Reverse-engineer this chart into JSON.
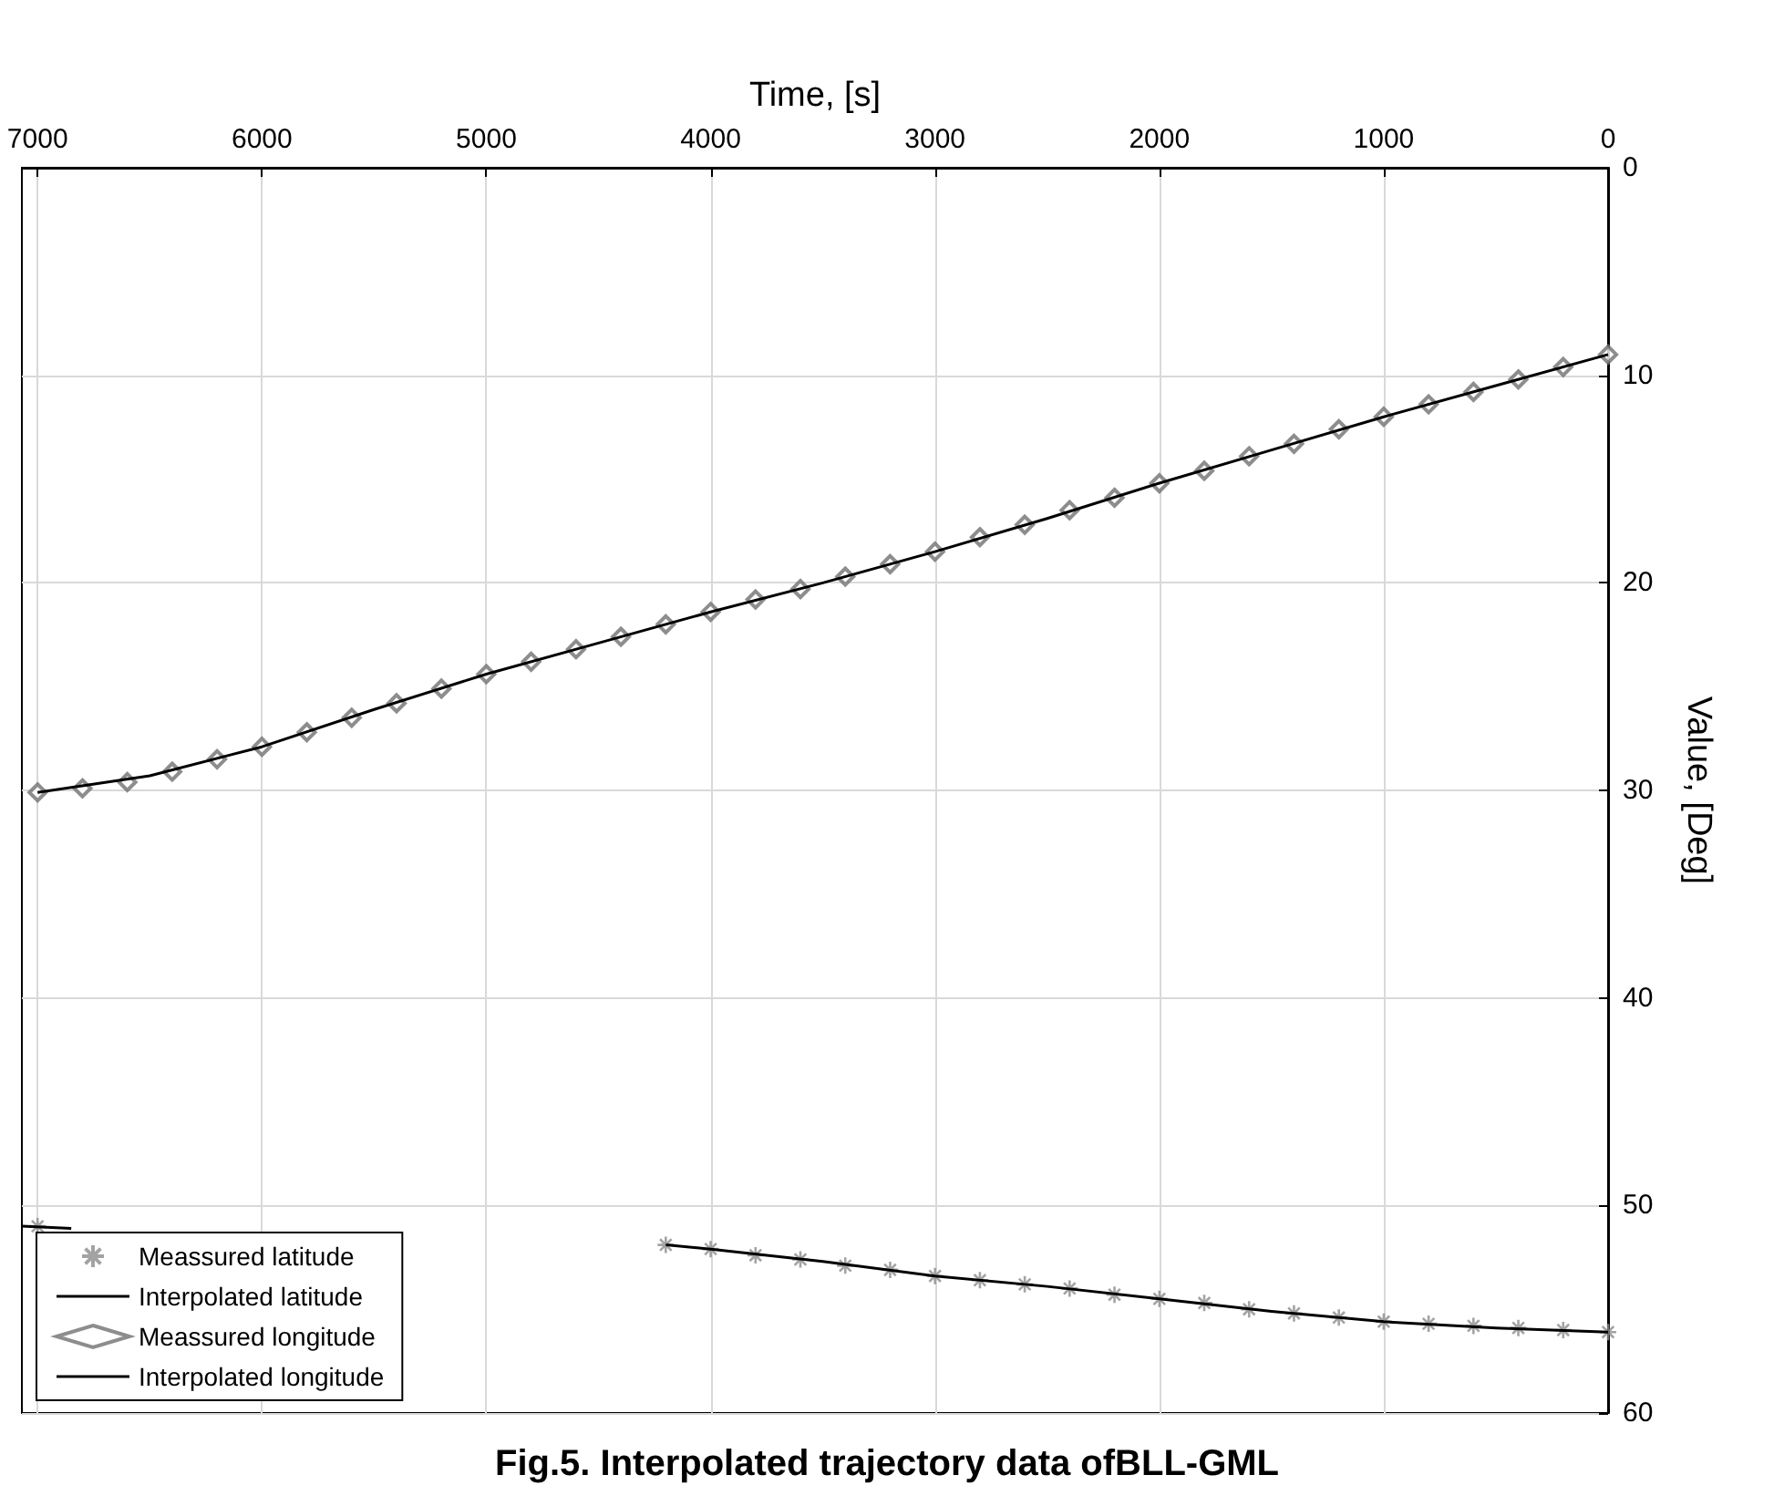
{
  "chart_data": {
    "type": "line",
    "title": "Fig.5. Interpolated trajectory data ofBLL-GML",
    "xlabel": "Time, [s]",
    "ylabel": "Value, [Deg]",
    "xlim": [
      7070,
      0
    ],
    "xticks": [
      0,
      1000,
      2000,
      3000,
      4000,
      5000,
      6000,
      7000
    ],
    "ylim": [
      60,
      0
    ],
    "yticks": [
      0,
      10,
      20,
      30,
      40,
      50,
      60
    ],
    "grid": true,
    "legend": "bottom left",
    "series": [
      {
        "name": "Meassured latitude",
        "type": "scatter",
        "marker": "cross",
        "color": "#8c8c8c",
        "x": [
          0,
          200,
          400,
          600,
          800,
          1000,
          1200,
          1400,
          1600,
          1800,
          2000,
          2200,
          2400,
          2600,
          2800,
          3000,
          3200,
          3400,
          3600,
          3800,
          4000,
          4200,
          4400,
          4600,
          4800,
          5000,
          5200,
          5400,
          5600,
          5800,
          6000,
          6200,
          6400,
          6600,
          6800,
          7000
        ],
        "values": [
          56.1,
          56.0,
          55.9,
          55.8,
          55.7,
          55.6,
          55.4,
          55.2,
          55.0,
          54.7,
          54.5,
          54.3,
          54.0,
          53.8,
          53.6,
          53.4,
          53.1,
          52.9,
          52.6,
          52.4,
          52.1,
          51.9,
          null,
          null,
          null,
          null,
          null,
          null,
          null,
          null,
          null,
          null,
          null,
          null,
          null,
          51.0
        ]
      },
      {
        "name": "Interpolated latitude",
        "marker": "none",
        "color": "#000000",
        "x": [
          0,
          500,
          1000,
          1500,
          2000,
          2500,
          3000,
          3500,
          4000,
          4200,
          4400,
          6850,
          7070
        ],
        "values": [
          56.1,
          55.9,
          55.6,
          55.1,
          54.5,
          53.9,
          53.4,
          52.7,
          52.1,
          51.9,
          null,
          51.1,
          51.0
        ]
      },
      {
        "name": "Meassured longitude",
        "type": "scatter",
        "marker": "diamond",
        "color": "#707070",
        "x": [
          0,
          200,
          400,
          600,
          800,
          1000,
          1200,
          1400,
          1600,
          1800,
          2000,
          2200,
          2400,
          2600,
          2800,
          3000,
          3200,
          3400,
          3600,
          3800,
          4000,
          4200,
          4400,
          4600,
          4800,
          5000,
          5200,
          5400,
          5600,
          5800,
          6000,
          6200,
          6400,
          6600,
          6800,
          7000
        ],
        "values": [
          9.0,
          9.6,
          10.2,
          10.8,
          11.4,
          12.0,
          12.6,
          13.3,
          13.9,
          14.6,
          15.2,
          15.9,
          16.5,
          17.2,
          17.8,
          18.5,
          19.1,
          19.7,
          20.3,
          20.8,
          21.4,
          22.0,
          22.6,
          23.2,
          23.8,
          24.4,
          25.1,
          25.8,
          26.5,
          27.2,
          27.9,
          28.5,
          29.1,
          29.6,
          29.9,
          30.1
        ]
      },
      {
        "name": "Interpolated longitude",
        "marker": "none",
        "color": "#000000",
        "x": [
          0,
          500,
          1000,
          1500,
          2000,
          2500,
          3000,
          3500,
          4000,
          4500,
          5000,
          5500,
          6000,
          6500,
          7000
        ],
        "values": [
          9.0,
          10.5,
          12.0,
          13.6,
          15.2,
          16.9,
          18.5,
          20.0,
          21.4,
          22.9,
          24.4,
          26.1,
          27.9,
          29.3,
          30.1
        ]
      }
    ]
  }
}
